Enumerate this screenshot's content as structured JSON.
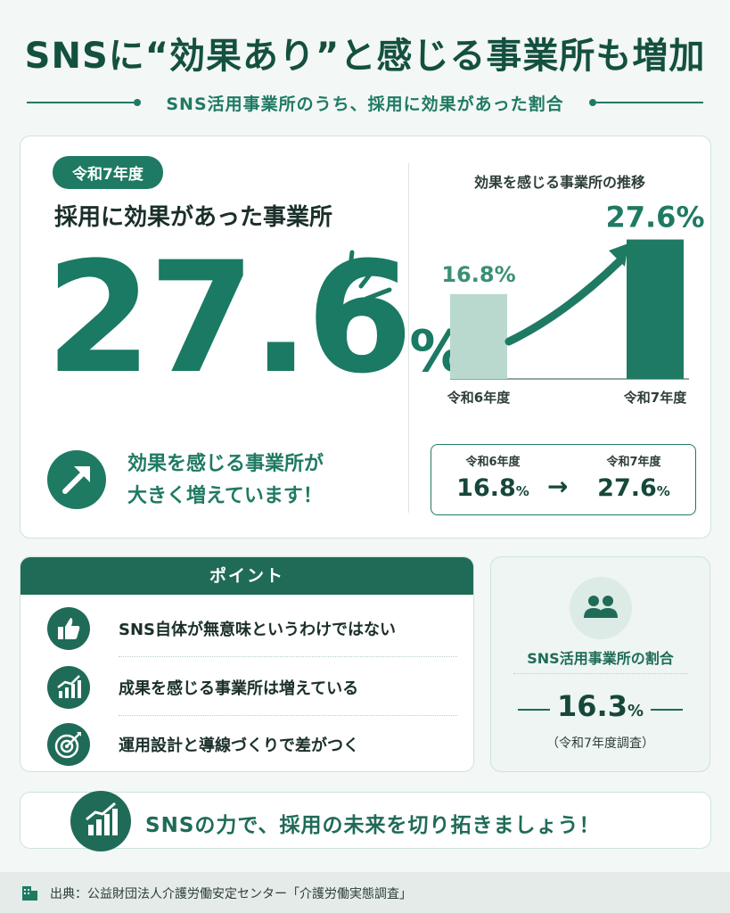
{
  "title": "SNSに“効果あり”と感じる事業所も増加",
  "subtitle": "SNS活用事業所のうち、採用に効果があった割合",
  "main": {
    "year": "令和7年度",
    "heading": "採用に効果があった事業所",
    "big_value": "27.6",
    "big_unit": "%",
    "message_line1": "効果を感じる事業所が",
    "message_line2": "大きく増えています！",
    "icon": "arrow-up-right-icon"
  },
  "chart_data": {
    "type": "bar",
    "title": "効果を感じる事業所の推移",
    "categories": [
      "令和6年度",
      "令和7年度"
    ],
    "values": [
      16.8,
      27.6
    ],
    "value_labels": [
      "16.8%",
      "27.6%"
    ],
    "colors": [
      "#b9d9cf",
      "#1f7a63"
    ],
    "ylim": [
      0,
      30
    ]
  },
  "comparison": {
    "from_label": "令和6年度",
    "from_value": "16.8",
    "to_label": "令和7年度",
    "to_value": "27.6",
    "unit": "%",
    "arrow": "→"
  },
  "points": {
    "heading": "ポイント",
    "items": [
      {
        "text": "SNS自体が無意味というわけではない",
        "icon": "thumbs-up-icon"
      },
      {
        "text": "成果を感じる事業所は増えている",
        "icon": "growth-chart-icon"
      },
      {
        "text": "運用設計と導線づくりで差がつく",
        "icon": "target-icon"
      }
    ]
  },
  "ratio": {
    "icon": "users-icon",
    "label": "SNS活用事業所の割合",
    "value": "16.3",
    "unit": "%",
    "note": "（令和7年度調査）"
  },
  "banner": {
    "text": "SNSの力で、採用の未来を切り拓きましょう！",
    "icon": "bar-chart-up-icon"
  },
  "footer": {
    "text": "出典：公益財団法人介護労働安定センター「介護労働実態調査」",
    "icon": "building-icon"
  },
  "colors": {
    "primary": "#1f7a63",
    "dark": "#14503f",
    "light_bar": "#b9d9cf",
    "background": "#f3f7f5"
  }
}
